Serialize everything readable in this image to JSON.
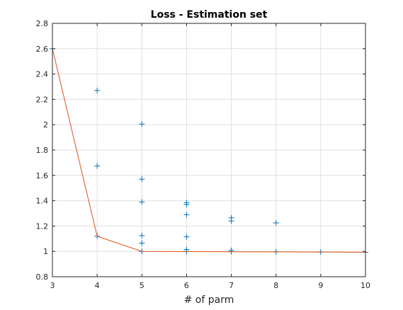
{
  "chart_data": {
    "type": "scatter",
    "title": "Loss - Estimation set",
    "xlabel": "# of parm",
    "ylabel": "",
    "xlim": [
      3,
      10
    ],
    "ylim": [
      0.8,
      2.8
    ],
    "xticks": [
      "3",
      "4",
      "5",
      "6",
      "7",
      "8",
      "9",
      "10"
    ],
    "yticks": [
      "0.8",
      "1",
      "1.2",
      "1.4",
      "1.6",
      "1.8",
      "2",
      "2.2",
      "2.4",
      "2.6",
      "2.8"
    ],
    "grid": true,
    "box": true,
    "series": [
      {
        "type": "scatter",
        "marker": "+",
        "color": "#0072BD",
        "points": [
          {
            "x": 3,
            "y": 2.6
          },
          {
            "x": 4,
            "y": 2.27
          },
          {
            "x": 4,
            "y": 1.675
          },
          {
            "x": 4,
            "y": 1.12
          },
          {
            "x": 5,
            "y": 2.005
          },
          {
            "x": 5,
            "y": 1.57
          },
          {
            "x": 5,
            "y": 1.39
          },
          {
            "x": 5,
            "y": 1.125
          },
          {
            "x": 5,
            "y": 1.065
          },
          {
            "x": 5,
            "y": 1.0
          },
          {
            "x": 6,
            "y": 1.385
          },
          {
            "x": 6,
            "y": 1.37
          },
          {
            "x": 6,
            "y": 1.29
          },
          {
            "x": 6,
            "y": 1.115
          },
          {
            "x": 6,
            "y": 1.015
          },
          {
            "x": 6,
            "y": 1.0
          },
          {
            "x": 7,
            "y": 1.265
          },
          {
            "x": 7,
            "y": 1.24
          },
          {
            "x": 7,
            "y": 1.008
          },
          {
            "x": 7,
            "y": 0.998
          },
          {
            "x": 8,
            "y": 1.225
          },
          {
            "x": 8,
            "y": 0.997
          },
          {
            "x": 9,
            "y": 0.995
          },
          {
            "x": 10,
            "y": 0.993
          }
        ]
      },
      {
        "type": "line",
        "color": "#D95319",
        "x": [
          3,
          4,
          5,
          6,
          7,
          8,
          9,
          10
        ],
        "y": [
          2.6,
          1.12,
          1.0,
          0.998,
          0.997,
          0.996,
          0.995,
          0.993
        ]
      }
    ]
  }
}
